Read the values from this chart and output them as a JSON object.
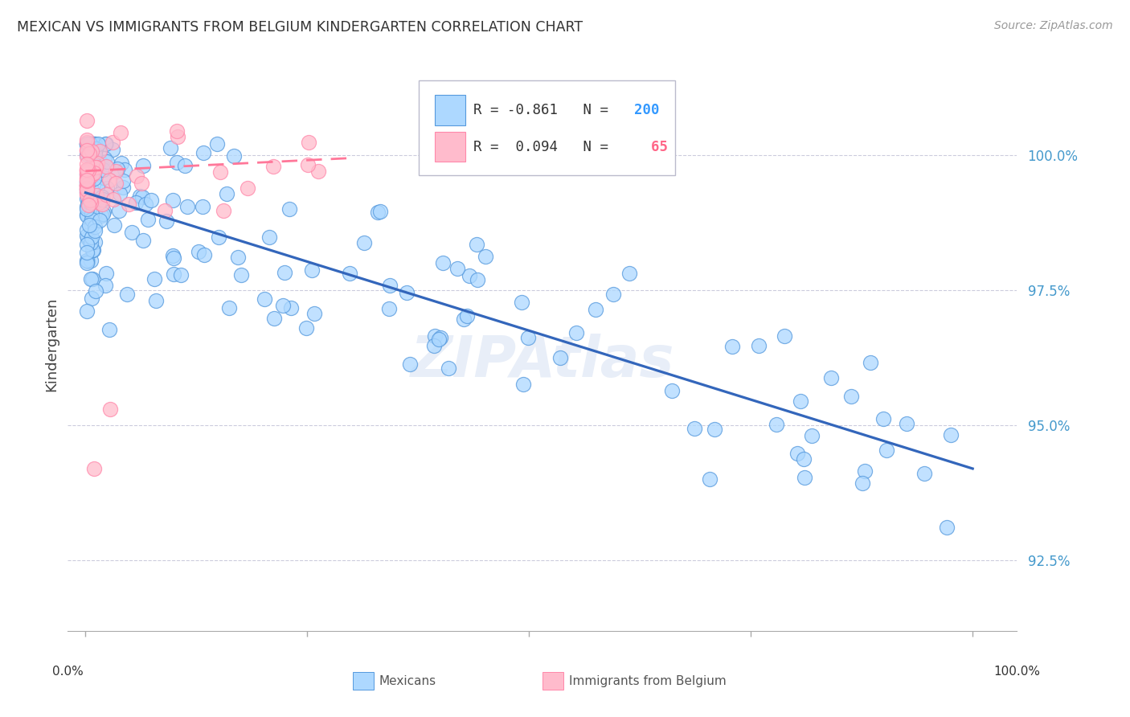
{
  "title": "MEXICAN VS IMMIGRANTS FROM BELGIUM KINDERGARTEN CORRELATION CHART",
  "source": "Source: ZipAtlas.com",
  "ylabel": "Kindergarten",
  "ytick_labels": [
    "100.0%",
    "97.5%",
    "95.0%",
    "92.5%"
  ],
  "ytick_values": [
    1.0,
    0.975,
    0.95,
    0.925
  ],
  "xlim": [
    -0.02,
    1.05
  ],
  "ylim": [
    0.912,
    1.018
  ],
  "blue_R": -0.861,
  "blue_N": 200,
  "pink_R": 0.094,
  "pink_N": 65,
  "blue_color": "#add8ff",
  "blue_edge_color": "#5599dd",
  "blue_line_color": "#3366bb",
  "pink_color": "#ffbbcc",
  "pink_edge_color": "#ff88aa",
  "pink_line_color": "#ff7799",
  "watermark": "ZIPAtlas",
  "legend_blue_R": "R = -0.861",
  "legend_blue_N": "200",
  "legend_pink_R": "R =  0.094",
  "legend_pink_N": "  65",
  "n_color_blue": "#3399ff",
  "n_color_pink": "#ff6688",
  "bottom_label_blue": "Mexicans",
  "bottom_label_pink": "Immigrants from Belgium"
}
